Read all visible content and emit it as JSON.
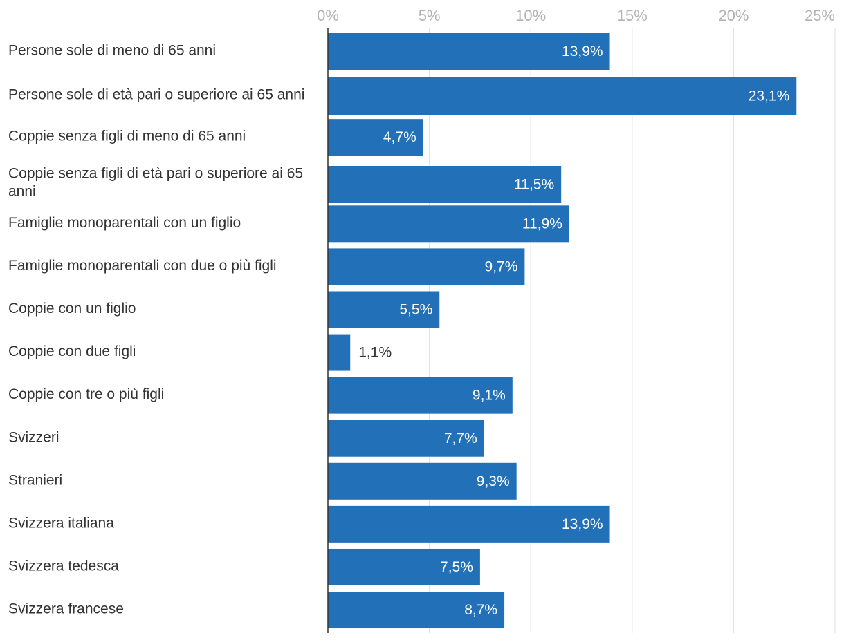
{
  "chart_data": {
    "type": "bar",
    "orientation": "horizontal",
    "categories": [
      "Persone sole di meno di 65 anni",
      "Persone sole di età pari o superiore ai 65 anni",
      "Coppie senza figli di meno di 65 anni",
      "Coppie senza figli di età pari o superiore ai 65 anni",
      "Famiglie monoparentali con un figlio",
      "Famiglie monoparentali con due o più figli",
      "Coppie con un figlio",
      "Coppie con due figli",
      "Coppie con tre o più figli",
      "Svizzeri",
      "Stranieri",
      "Svizzera italiana",
      "Svizzera tedesca",
      "Svizzera francese"
    ],
    "values": [
      13.9,
      23.1,
      4.7,
      11.5,
      11.9,
      9.7,
      5.5,
      1.1,
      9.1,
      7.7,
      9.3,
      13.9,
      7.5,
      8.7
    ],
    "value_labels": [
      "13,9%",
      "23,1%",
      "4,7%",
      "11,5%",
      "11,9%",
      "9,7%",
      "5,5%",
      "1,1%",
      "9,1%",
      "7,7%",
      "9,3%",
      "13,9%",
      "7,5%",
      "8,7%"
    ],
    "xlim": [
      0,
      25
    ],
    "x_ticks": [
      0,
      5,
      10,
      15,
      20,
      25
    ],
    "x_tick_labels": [
      "0%",
      "5%",
      "10%",
      "15%",
      "20%",
      "25%"
    ],
    "x_axis_position": "top",
    "grid": true,
    "title": "",
    "xlabel": "",
    "ylabel": "",
    "colors": {
      "bar": "#2271b8",
      "grid": "#e3e3e3",
      "axis": "#333333",
      "tick_text": "#b3b3b3",
      "label_text": "#333333",
      "value_text_inside": "#ffffff",
      "value_text_outside": "#333333"
    }
  }
}
